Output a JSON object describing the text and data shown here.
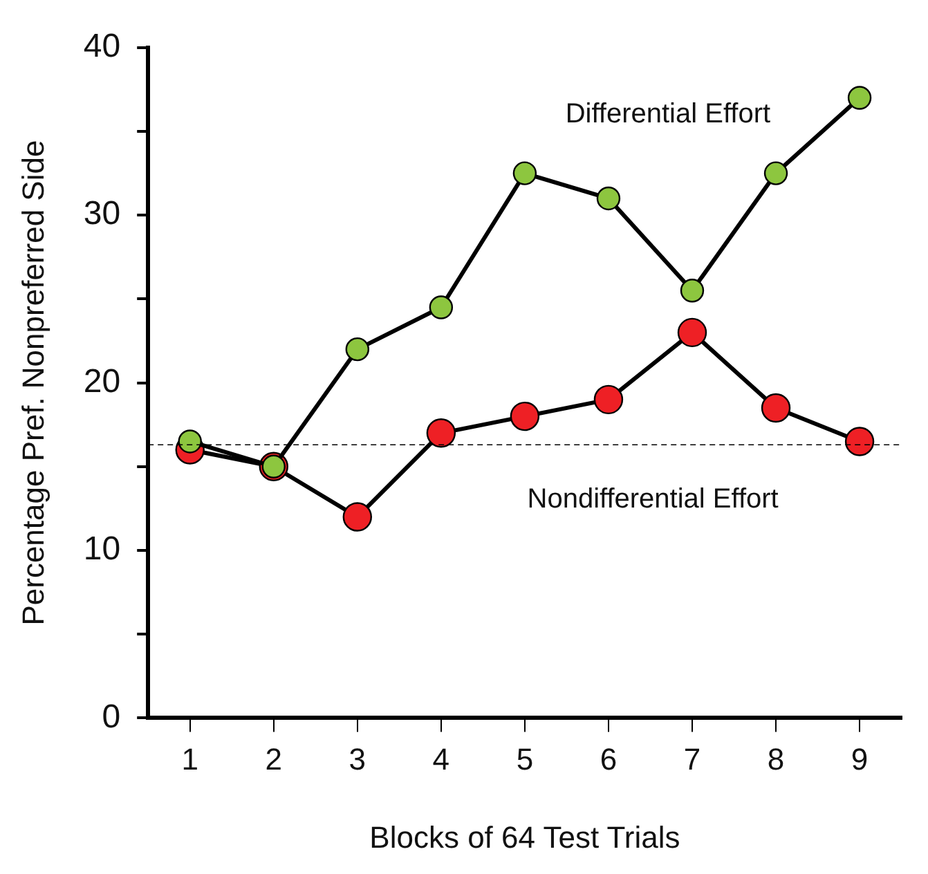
{
  "chart_data": {
    "type": "line",
    "xlabel": "Blocks of 64 Test Trials",
    "ylabel": "Percentage Pref. Nonpreferred Side",
    "categories": [
      "1",
      "2",
      "3",
      "4",
      "5",
      "6",
      "7",
      "8",
      "9"
    ],
    "series": [
      {
        "name": "Differential Effort",
        "color": "#8dc63f",
        "values": [
          16.5,
          15,
          22,
          24.5,
          32.5,
          31,
          25.5,
          32.5,
          37
        ]
      },
      {
        "name": "Nondifferential Effort",
        "color": "#ee2025",
        "values": [
          16,
          15,
          12,
          17,
          18,
          19,
          23,
          18.5,
          16.5
        ]
      }
    ],
    "ylim": [
      0,
      40
    ],
    "yticks": [
      0,
      {
        "value": 5,
        "label": null
      },
      10,
      {
        "value": 15,
        "label": null
      },
      20,
      {
        "value": 25,
        "label": null
      },
      30,
      {
        "value": 35,
        "label": null
      },
      40
    ],
    "ref_lines": [
      {
        "axis": "y",
        "value": 16.3,
        "line_style": "dashed"
      }
    ],
    "grid": false,
    "legend": false,
    "marker": "circle",
    "line_style": "solid"
  }
}
